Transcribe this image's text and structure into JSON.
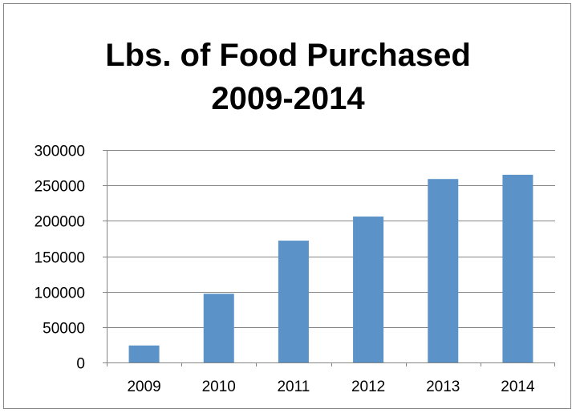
{
  "chart_data": {
    "type": "bar",
    "title_lines": [
      "Lbs. of Food Purchased",
      "2009-2014"
    ],
    "categories": [
      "2009",
      "2010",
      "2011",
      "2012",
      "2013",
      "2014"
    ],
    "values": [
      24000,
      97000,
      172000,
      206000,
      259000,
      265000
    ],
    "xlabel": "",
    "ylabel": "",
    "ylim": [
      0,
      300000
    ],
    "yticks": [
      0,
      50000,
      100000,
      150000,
      200000,
      250000,
      300000
    ],
    "ytick_labels": [
      "0",
      "50000",
      "100000",
      "150000",
      "200000",
      "250000",
      "300000"
    ],
    "grid": true,
    "legend": "none",
    "bar_color": "#5B93C9",
    "grid_color": "#868686"
  }
}
